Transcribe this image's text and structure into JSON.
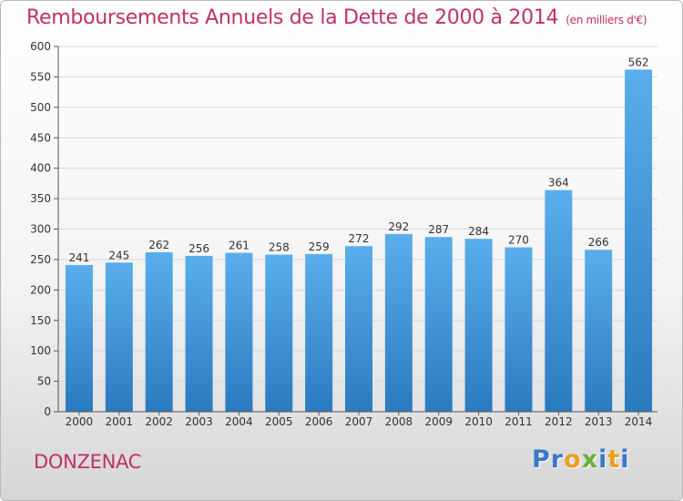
{
  "title": "Remboursements Annuels de la Dette de 2000 à 2014",
  "unit": "(en milliers d'€)",
  "city": "DONZENAC",
  "logo": {
    "letters": [
      "P",
      "r",
      "o",
      "x",
      "i",
      "t",
      "i"
    ],
    "colors": [
      "#3a78c8",
      "#3a78c8",
      "#e8a020",
      "#6ab03a",
      "#3a78c8",
      "#e8a020",
      "#3a78c8"
    ]
  },
  "colors": {
    "bar_top": "#5aaeec",
    "bar_bottom": "#2a7ac0",
    "axis_text": "#333333",
    "grid": "#d8d8d8",
    "accent": "#c0306a"
  },
  "chart_data": {
    "type": "bar",
    "categories": [
      "2000",
      "2001",
      "2002",
      "2003",
      "2004",
      "2005",
      "2006",
      "2007",
      "2008",
      "2009",
      "2010",
      "2011",
      "2012",
      "2013",
      "2014"
    ],
    "values": [
      241,
      245,
      262,
      256,
      261,
      258,
      259,
      272,
      292,
      287,
      284,
      270,
      364,
      266,
      562
    ],
    "ylim": [
      0,
      600
    ],
    "yticks": [
      0,
      50,
      100,
      150,
      200,
      250,
      300,
      350,
      400,
      450,
      500,
      550,
      600
    ],
    "grid": true,
    "data_labels": true
  }
}
